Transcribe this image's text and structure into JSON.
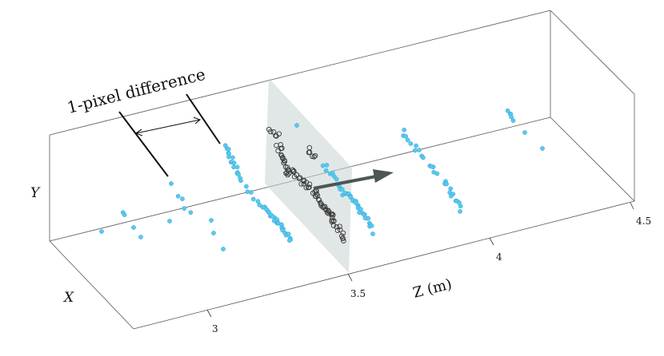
{
  "labels": {
    "callout": "1-pixel difference",
    "axis_y": "Y",
    "axis_x": "X",
    "axis_z_title": "Z (m)"
  },
  "ticks": {
    "z3": "3",
    "z35": "3.5",
    "z4": "4",
    "z45": "4.5"
  },
  "colors": {
    "points": "#5bc8ef",
    "points_edge": "#2aa6d6",
    "dark_points": "#3a3a3a",
    "plane": "#c8d2d2",
    "arrow": "#4d5656",
    "box": "#555555"
  }
}
